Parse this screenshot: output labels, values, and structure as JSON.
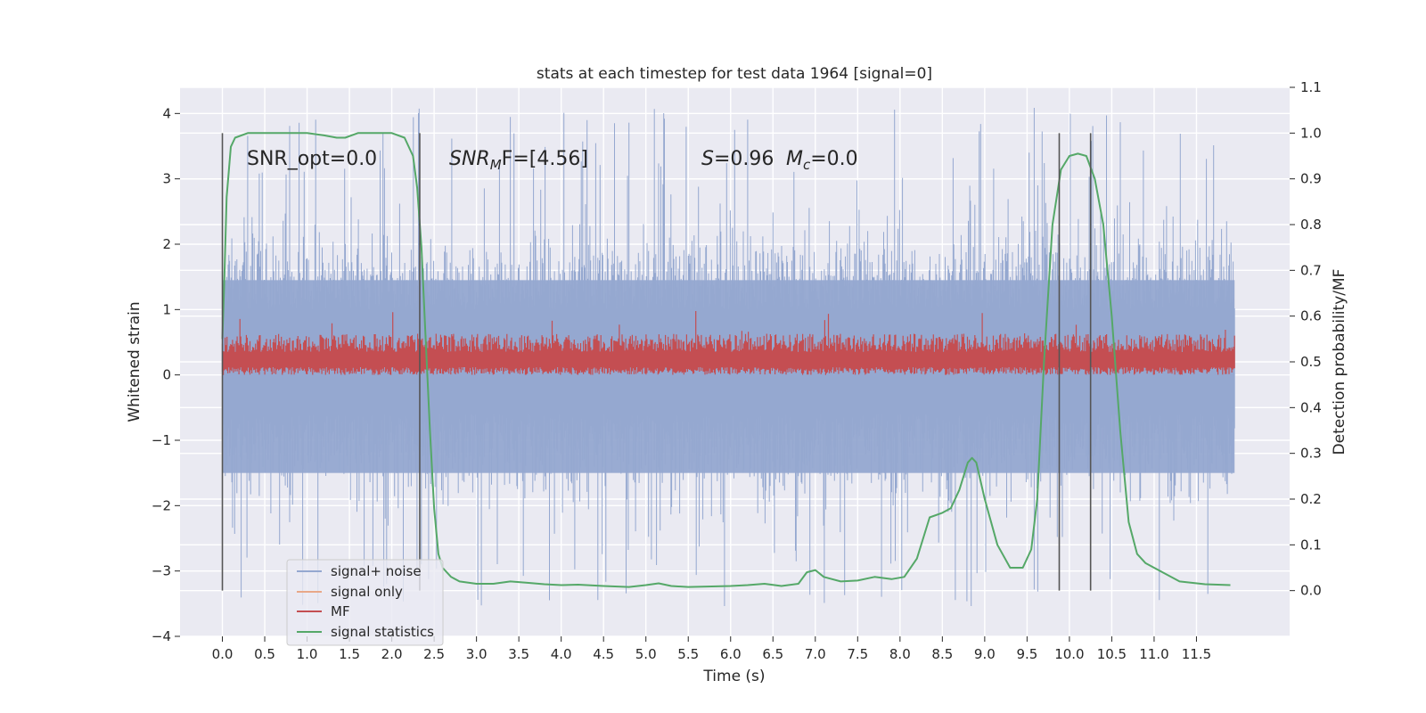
{
  "chart_data": {
    "type": "line",
    "title": "stats at each timestep for test data 1964 [signal=0]",
    "xlabel": "Time (s)",
    "ylabel": "Whitened strain",
    "ylabel_right": "Detection probability/MF",
    "xlim": [
      -0.5,
      12.6
    ],
    "ylim": [
      -4.0,
      4.4
    ],
    "ylim_right": [
      -0.1,
      1.1
    ],
    "x_ticks": [
      "0.0",
      "0.5",
      "1.0",
      "1.5",
      "2.0",
      "2.5",
      "3.0",
      "3.5",
      "4.0",
      "4.5",
      "5.0",
      "5.5",
      "6.0",
      "6.5",
      "7.0",
      "7.5",
      "8.0",
      "8.5",
      "9.0",
      "9.5",
      "10.0",
      "10.5",
      "11.0",
      "11.5"
    ],
    "y_ticks_left": [
      "4",
      "3",
      "2",
      "1",
      "0",
      "−1",
      "−2",
      "−3",
      "−4"
    ],
    "y_ticks_right": [
      "1.1",
      "1.0",
      "0.9",
      "0.8",
      "0.7",
      "0.6",
      "0.5",
      "0.4",
      "0.3",
      "0.2",
      "0.1",
      "0.0"
    ],
    "grid": true,
    "legend_placement": "lower-left",
    "annotations": {
      "snr_opt": "SNR_opt=0.0",
      "snr_mf_prefix": "SNR",
      "snr_mf_sub": "M",
      "snr_mf_rest": "F=[4.56]",
      "s_label": "S",
      "s_value": "=0.96",
      "mc_label": "M",
      "mc_sub": "c",
      "mc_value": "=0.0"
    },
    "vertical_markers_x": [
      0.0,
      2.33,
      9.88,
      10.25
    ],
    "series": [
      {
        "name": "signal+ noise",
        "color": "#95a8d0",
        "axis": "left",
        "t_range": [
          0.0,
          11.95
        ],
        "band_typical": [
          -1.9,
          2.3
        ],
        "extreme": [
          -3.6,
          4.1
        ]
      },
      {
        "name": "signal only",
        "color": "#e8a888",
        "axis": "left",
        "values_note": ""
      },
      {
        "name": "MF",
        "color": "#c44e52",
        "axis": "left",
        "t_range": [
          0.0,
          11.95
        ],
        "band_typical": [
          0.0,
          0.6
        ],
        "extreme": [
          0.0,
          1.0
        ]
      },
      {
        "name": "signal statistics",
        "color": "#55a868",
        "axis": "right",
        "x": [
          0.0,
          0.02,
          0.05,
          0.1,
          0.15,
          0.3,
          0.5,
          0.8,
          1.0,
          1.2,
          1.35,
          1.45,
          1.6,
          1.8,
          2.0,
          2.15,
          2.25,
          2.3,
          2.35,
          2.4,
          2.45,
          2.5,
          2.55,
          2.6,
          2.7,
          2.8,
          3.0,
          3.2,
          3.4,
          3.6,
          3.8,
          4.0,
          4.2,
          4.5,
          4.8,
          5.0,
          5.15,
          5.3,
          5.5,
          6.0,
          6.2,
          6.4,
          6.6,
          6.8,
          6.9,
          7.0,
          7.1,
          7.3,
          7.5,
          7.7,
          7.9,
          8.05,
          8.2,
          8.35,
          8.5,
          8.6,
          8.7,
          8.8,
          8.85,
          8.9,
          9.0,
          9.15,
          9.3,
          9.45,
          9.55,
          9.62,
          9.7,
          9.8,
          9.9,
          10.0,
          10.1,
          10.2,
          10.3,
          10.4,
          10.5,
          10.6,
          10.7,
          10.8,
          10.9,
          11.1,
          11.3,
          11.6,
          11.9
        ],
        "values": [
          0.55,
          0.66,
          0.86,
          0.97,
          0.99,
          1.0,
          1.0,
          1.0,
          1.0,
          0.995,
          0.99,
          0.99,
          1.0,
          1.0,
          1.0,
          0.99,
          0.95,
          0.88,
          0.75,
          0.55,
          0.35,
          0.18,
          0.08,
          0.05,
          0.03,
          0.02,
          0.015,
          0.015,
          0.02,
          0.017,
          0.014,
          0.012,
          0.013,
          0.01,
          0.008,
          0.012,
          0.016,
          0.01,
          0.008,
          0.01,
          0.012,
          0.015,
          0.01,
          0.015,
          0.04,
          0.045,
          0.03,
          0.02,
          0.022,
          0.03,
          0.025,
          0.03,
          0.07,
          0.16,
          0.17,
          0.18,
          0.22,
          0.28,
          0.29,
          0.28,
          0.2,
          0.1,
          0.05,
          0.05,
          0.09,
          0.2,
          0.5,
          0.8,
          0.92,
          0.95,
          0.955,
          0.95,
          0.9,
          0.8,
          0.6,
          0.35,
          0.15,
          0.08,
          0.06,
          0.04,
          0.02,
          0.014,
          0.012
        ]
      }
    ]
  }
}
